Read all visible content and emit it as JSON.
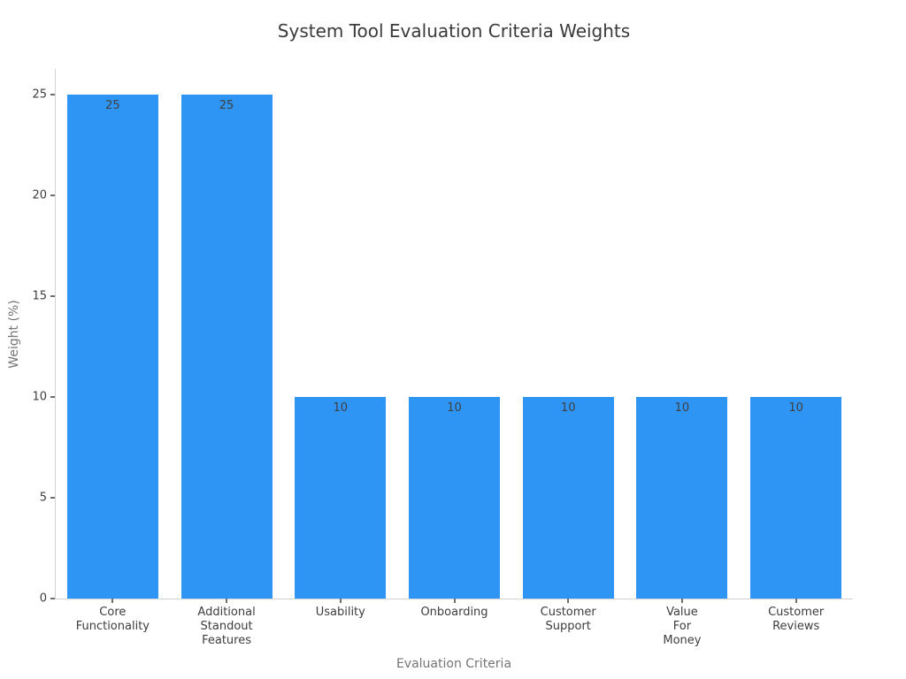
{
  "chart_data": {
    "type": "bar",
    "title": "System Tool Evaluation Criteria Weights",
    "xlabel": "Evaluation Criteria",
    "ylabel": "Weight (%)",
    "categories": [
      "Core\nFunctionality",
      "Additional\nStandout\nFeatures",
      "Usability",
      "Onboarding",
      "Customer\nSupport",
      "Value\nFor\nMoney",
      "Customer\nReviews"
    ],
    "values": [
      25,
      25,
      10,
      10,
      10,
      10,
      10
    ],
    "bar_value_labels": [
      "25",
      "25",
      "10",
      "10",
      "10",
      "10",
      "10"
    ],
    "yticks": [
      0,
      5,
      10,
      15,
      20,
      25
    ],
    "ylim": [
      0,
      26.25
    ],
    "grid": false,
    "legend_position": "none",
    "bar_width_fraction": 0.8
  },
  "colors": {
    "background": "#ffffff",
    "bar": "#2E95F5",
    "spine": "#d2d2d2",
    "tick": "#6e6e6e",
    "tick_label": "#3d3d3d",
    "title": "#3a3a3a",
    "axis_label": "#757575",
    "bar_label": "#3f3f3f"
  }
}
